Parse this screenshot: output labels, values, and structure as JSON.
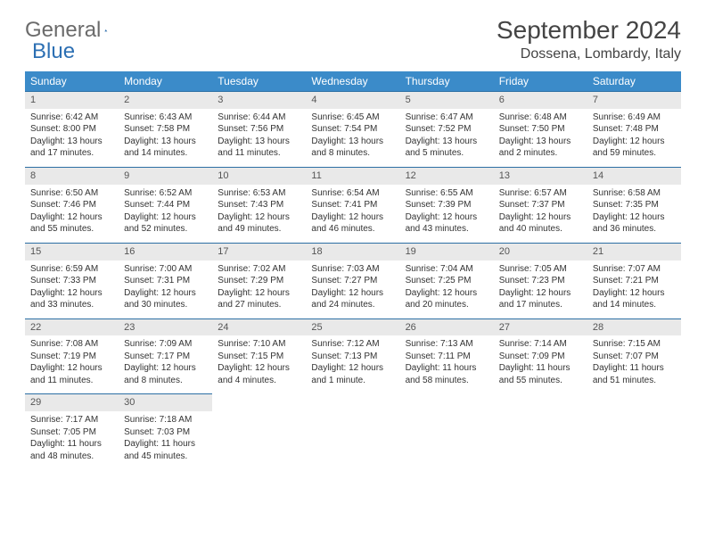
{
  "logo": {
    "text1": "General",
    "text2": "Blue"
  },
  "title": "September 2024",
  "location": "Dossena, Lombardy, Italy",
  "weekdays": [
    "Sunday",
    "Monday",
    "Tuesday",
    "Wednesday",
    "Thursday",
    "Friday",
    "Saturday"
  ],
  "colors": {
    "header_bg": "#3b8bc9",
    "header_text": "#ffffff",
    "daynum_bg": "#e9e9e9",
    "border": "#2c6fa4",
    "logo_gray": "#6b6b6b",
    "logo_blue": "#2c6fb3"
  },
  "weeks": [
    [
      {
        "n": "1",
        "sr": "Sunrise: 6:42 AM",
        "ss": "Sunset: 8:00 PM",
        "d1": "Daylight: 13 hours",
        "d2": "and 17 minutes."
      },
      {
        "n": "2",
        "sr": "Sunrise: 6:43 AM",
        "ss": "Sunset: 7:58 PM",
        "d1": "Daylight: 13 hours",
        "d2": "and 14 minutes."
      },
      {
        "n": "3",
        "sr": "Sunrise: 6:44 AM",
        "ss": "Sunset: 7:56 PM",
        "d1": "Daylight: 13 hours",
        "d2": "and 11 minutes."
      },
      {
        "n": "4",
        "sr": "Sunrise: 6:45 AM",
        "ss": "Sunset: 7:54 PM",
        "d1": "Daylight: 13 hours",
        "d2": "and 8 minutes."
      },
      {
        "n": "5",
        "sr": "Sunrise: 6:47 AM",
        "ss": "Sunset: 7:52 PM",
        "d1": "Daylight: 13 hours",
        "d2": "and 5 minutes."
      },
      {
        "n": "6",
        "sr": "Sunrise: 6:48 AM",
        "ss": "Sunset: 7:50 PM",
        "d1": "Daylight: 13 hours",
        "d2": "and 2 minutes."
      },
      {
        "n": "7",
        "sr": "Sunrise: 6:49 AM",
        "ss": "Sunset: 7:48 PM",
        "d1": "Daylight: 12 hours",
        "d2": "and 59 minutes."
      }
    ],
    [
      {
        "n": "8",
        "sr": "Sunrise: 6:50 AM",
        "ss": "Sunset: 7:46 PM",
        "d1": "Daylight: 12 hours",
        "d2": "and 55 minutes."
      },
      {
        "n": "9",
        "sr": "Sunrise: 6:52 AM",
        "ss": "Sunset: 7:44 PM",
        "d1": "Daylight: 12 hours",
        "d2": "and 52 minutes."
      },
      {
        "n": "10",
        "sr": "Sunrise: 6:53 AM",
        "ss": "Sunset: 7:43 PM",
        "d1": "Daylight: 12 hours",
        "d2": "and 49 minutes."
      },
      {
        "n": "11",
        "sr": "Sunrise: 6:54 AM",
        "ss": "Sunset: 7:41 PM",
        "d1": "Daylight: 12 hours",
        "d2": "and 46 minutes."
      },
      {
        "n": "12",
        "sr": "Sunrise: 6:55 AM",
        "ss": "Sunset: 7:39 PM",
        "d1": "Daylight: 12 hours",
        "d2": "and 43 minutes."
      },
      {
        "n": "13",
        "sr": "Sunrise: 6:57 AM",
        "ss": "Sunset: 7:37 PM",
        "d1": "Daylight: 12 hours",
        "d2": "and 40 minutes."
      },
      {
        "n": "14",
        "sr": "Sunrise: 6:58 AM",
        "ss": "Sunset: 7:35 PM",
        "d1": "Daylight: 12 hours",
        "d2": "and 36 minutes."
      }
    ],
    [
      {
        "n": "15",
        "sr": "Sunrise: 6:59 AM",
        "ss": "Sunset: 7:33 PM",
        "d1": "Daylight: 12 hours",
        "d2": "and 33 minutes."
      },
      {
        "n": "16",
        "sr": "Sunrise: 7:00 AM",
        "ss": "Sunset: 7:31 PM",
        "d1": "Daylight: 12 hours",
        "d2": "and 30 minutes."
      },
      {
        "n": "17",
        "sr": "Sunrise: 7:02 AM",
        "ss": "Sunset: 7:29 PM",
        "d1": "Daylight: 12 hours",
        "d2": "and 27 minutes."
      },
      {
        "n": "18",
        "sr": "Sunrise: 7:03 AM",
        "ss": "Sunset: 7:27 PM",
        "d1": "Daylight: 12 hours",
        "d2": "and 24 minutes."
      },
      {
        "n": "19",
        "sr": "Sunrise: 7:04 AM",
        "ss": "Sunset: 7:25 PM",
        "d1": "Daylight: 12 hours",
        "d2": "and 20 minutes."
      },
      {
        "n": "20",
        "sr": "Sunrise: 7:05 AM",
        "ss": "Sunset: 7:23 PM",
        "d1": "Daylight: 12 hours",
        "d2": "and 17 minutes."
      },
      {
        "n": "21",
        "sr": "Sunrise: 7:07 AM",
        "ss": "Sunset: 7:21 PM",
        "d1": "Daylight: 12 hours",
        "d2": "and 14 minutes."
      }
    ],
    [
      {
        "n": "22",
        "sr": "Sunrise: 7:08 AM",
        "ss": "Sunset: 7:19 PM",
        "d1": "Daylight: 12 hours",
        "d2": "and 11 minutes."
      },
      {
        "n": "23",
        "sr": "Sunrise: 7:09 AM",
        "ss": "Sunset: 7:17 PM",
        "d1": "Daylight: 12 hours",
        "d2": "and 8 minutes."
      },
      {
        "n": "24",
        "sr": "Sunrise: 7:10 AM",
        "ss": "Sunset: 7:15 PM",
        "d1": "Daylight: 12 hours",
        "d2": "and 4 minutes."
      },
      {
        "n": "25",
        "sr": "Sunrise: 7:12 AM",
        "ss": "Sunset: 7:13 PM",
        "d1": "Daylight: 12 hours",
        "d2": "and 1 minute."
      },
      {
        "n": "26",
        "sr": "Sunrise: 7:13 AM",
        "ss": "Sunset: 7:11 PM",
        "d1": "Daylight: 11 hours",
        "d2": "and 58 minutes."
      },
      {
        "n": "27",
        "sr": "Sunrise: 7:14 AM",
        "ss": "Sunset: 7:09 PM",
        "d1": "Daylight: 11 hours",
        "d2": "and 55 minutes."
      },
      {
        "n": "28",
        "sr": "Sunrise: 7:15 AM",
        "ss": "Sunset: 7:07 PM",
        "d1": "Daylight: 11 hours",
        "d2": "and 51 minutes."
      }
    ],
    [
      {
        "n": "29",
        "sr": "Sunrise: 7:17 AM",
        "ss": "Sunset: 7:05 PM",
        "d1": "Daylight: 11 hours",
        "d2": "and 48 minutes."
      },
      {
        "n": "30",
        "sr": "Sunrise: 7:18 AM",
        "ss": "Sunset: 7:03 PM",
        "d1": "Daylight: 11 hours",
        "d2": "and 45 minutes."
      },
      null,
      null,
      null,
      null,
      null
    ]
  ]
}
